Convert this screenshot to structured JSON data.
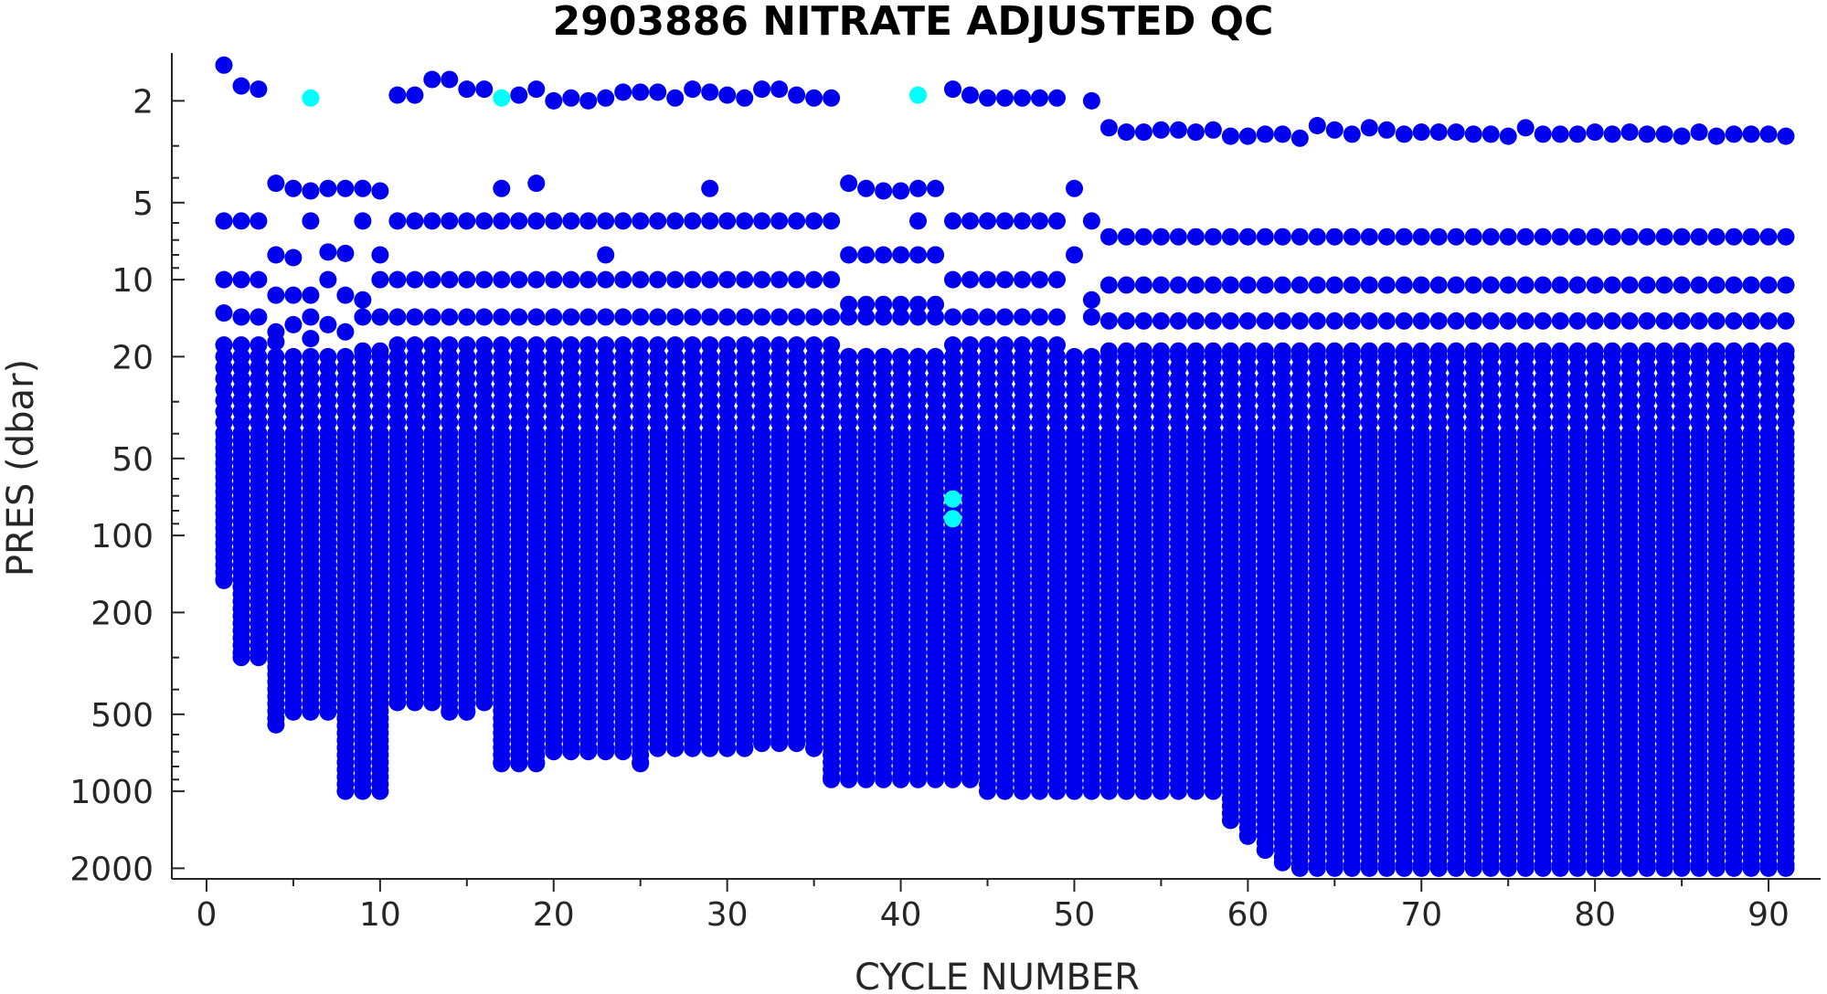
{
  "chart_data": {
    "type": "scatter",
    "title": "2903886  NITRATE ADJUSTED QC",
    "xlabel": "CYCLE NUMBER",
    "ylabel": "PRES (dbar)",
    "xlim": [
      -2,
      93
    ],
    "ylim": [
      1.3,
      2200
    ],
    "y_scale": "log",
    "y_reversed": true,
    "grid": false,
    "x_ticks": [
      0,
      10,
      20,
      30,
      40,
      50,
      60,
      70,
      80,
      90
    ],
    "y_ticks": [
      2,
      5,
      10,
      20,
      50,
      100,
      200,
      500,
      1000,
      2000
    ],
    "y_tick_labels": [
      "2",
      "5",
      "10",
      "20",
      "50",
      "100",
      "200",
      "500",
      "1000",
      "2000"
    ],
    "colors": {
      "qc_good": "#0000ee",
      "qc_flagged": "#00ffff"
    },
    "series": [
      {
        "color": "#0000ee",
        "surface_points": [
          [
            1,
            1.45
          ],
          [
            2,
            1.75
          ],
          [
            3,
            1.8
          ],
          [
            11,
            1.9
          ],
          [
            12,
            1.9
          ],
          [
            13,
            1.65
          ],
          [
            14,
            1.65
          ],
          [
            15,
            1.8
          ],
          [
            16,
            1.8
          ],
          [
            18,
            1.9
          ],
          [
            19,
            1.8
          ],
          [
            20,
            2.0
          ],
          [
            21,
            1.95
          ],
          [
            22,
            2.0
          ],
          [
            23,
            1.95
          ],
          [
            24,
            1.85
          ],
          [
            25,
            1.85
          ],
          [
            26,
            1.85
          ],
          [
            27,
            1.95
          ],
          [
            28,
            1.8
          ],
          [
            29,
            1.85
          ],
          [
            30,
            1.9
          ],
          [
            31,
            1.95
          ],
          [
            32,
            1.8
          ],
          [
            33,
            1.8
          ],
          [
            34,
            1.9
          ],
          [
            35,
            1.95
          ],
          [
            36,
            1.95
          ],
          [
            43,
            1.8
          ],
          [
            44,
            1.9
          ],
          [
            45,
            1.95
          ],
          [
            46,
            1.95
          ],
          [
            47,
            1.95
          ],
          [
            48,
            1.95
          ],
          [
            49,
            1.95
          ],
          [
            51,
            2.0
          ]
        ],
        "profile_points": [
          [
            1,
            5.9
          ],
          [
            1,
            10
          ],
          [
            1,
            13.5
          ],
          [
            1,
            18
          ],
          [
            2,
            5.9
          ],
          [
            2,
            10
          ],
          [
            2,
            14
          ],
          [
            2,
            18
          ],
          [
            3,
            5.9
          ],
          [
            3,
            10
          ],
          [
            3,
            14
          ],
          [
            3,
            18
          ],
          [
            4,
            4.2
          ],
          [
            4,
            8
          ],
          [
            4,
            11.5
          ],
          [
            4,
            16
          ],
          [
            4,
            17.5
          ],
          [
            5,
            4.4
          ],
          [
            5,
            8.2
          ],
          [
            5,
            11.5
          ],
          [
            5,
            15
          ],
          [
            6,
            4.5
          ],
          [
            6,
            5.9
          ],
          [
            6,
            11.5
          ],
          [
            6,
            14
          ],
          [
            6,
            17
          ],
          [
            7,
            4.4
          ],
          [
            7,
            7.8
          ],
          [
            7,
            10
          ],
          [
            7,
            15
          ],
          [
            8,
            4.4
          ],
          [
            8,
            7.9
          ],
          [
            8,
            11.5
          ],
          [
            8,
            16
          ],
          [
            9,
            4.4
          ],
          [
            9,
            5.9
          ],
          [
            9,
            12
          ],
          [
            9,
            14
          ],
          [
            9,
            19
          ],
          [
            10,
            4.5
          ],
          [
            10,
            8
          ],
          [
            10,
            10
          ],
          [
            10,
            14
          ],
          [
            10,
            19
          ],
          [
            17,
            4.4
          ],
          [
            19,
            4.2
          ],
          [
            23,
            8
          ],
          [
            29,
            4.4
          ],
          [
            37,
            4.2
          ],
          [
            38,
            4.4
          ],
          [
            39,
            4.5
          ],
          [
            40,
            4.5
          ],
          [
            41,
            4.4
          ],
          [
            41,
            5.9
          ],
          [
            42,
            4.4
          ],
          [
            42,
            8
          ],
          [
            50,
            4.4
          ],
          [
            50,
            8
          ],
          [
            51,
            5.9
          ],
          [
            51,
            14
          ],
          [
            51,
            12
          ],
          [
            52,
            2.55
          ],
          [
            53,
            2.65
          ],
          [
            54,
            2.65
          ],
          [
            55,
            2.6
          ],
          [
            56,
            2.6
          ],
          [
            57,
            2.65
          ],
          [
            58,
            2.6
          ],
          [
            59,
            2.75
          ],
          [
            60,
            2.75
          ],
          [
            61,
            2.7
          ],
          [
            62,
            2.7
          ],
          [
            63,
            2.8
          ],
          [
            64,
            2.5
          ],
          [
            65,
            2.6
          ],
          [
            66,
            2.7
          ],
          [
            67,
            2.55
          ],
          [
            68,
            2.6
          ],
          [
            69,
            2.7
          ],
          [
            70,
            2.65
          ],
          [
            71,
            2.65
          ],
          [
            72,
            2.65
          ],
          [
            73,
            2.7
          ],
          [
            74,
            2.7
          ],
          [
            75,
            2.75
          ],
          [
            76,
            2.55
          ],
          [
            77,
            2.7
          ],
          [
            78,
            2.7
          ],
          [
            79,
            2.7
          ],
          [
            80,
            2.65
          ],
          [
            81,
            2.7
          ],
          [
            82,
            2.65
          ],
          [
            83,
            2.7
          ],
          [
            84,
            2.7
          ],
          [
            85,
            2.75
          ],
          [
            86,
            2.65
          ],
          [
            87,
            2.75
          ],
          [
            88,
            2.7
          ],
          [
            89,
            2.7
          ],
          [
            90,
            2.7
          ],
          [
            91,
            2.75
          ]
        ],
        "levels_by_segment": [
          {
            "cycles": [
              1,
              3
            ],
            "min_pres": 20,
            "max_pres": [
              150,
              300,
              300
            ]
          },
          {
            "cycles": [
              4,
              7
            ],
            "min_pres": 20,
            "max_pres": [
              550,
              490,
              490,
              490
            ]
          },
          {
            "cycles": [
              8,
              10
            ],
            "min_pres": 20,
            "max_pres": 1000
          },
          {
            "cycles": [
              11,
              16
            ],
            "min_pres": 20,
            "max_pres": [
              450,
              450,
              450,
              490,
              490,
              450
            ]
          },
          {
            "cycles": [
              17,
              35
            ],
            "min_pres": 20,
            "max_pres": [
              780,
              780,
              780,
              700,
              700,
              700,
              700,
              700,
              780,
              680,
              680,
              680,
              680,
              680,
              680,
              650,
              650,
              650,
              680
            ]
          },
          {
            "cycles": [
              36,
              58
            ],
            "min_pres": 20,
            "max_pres": [
              900,
              900,
              900,
              900,
              900,
              900,
              900,
              900,
              900,
              1000,
              1000,
              1000,
              1000,
              1000,
              1000,
              1000,
              1000,
              1000,
              1000,
              1000,
              1000,
              1000,
              1000
            ]
          },
          {
            "cycles": [
              59,
              63
            ],
            "min_pres": 20,
            "max_pres": [
              1300,
              1500,
              1700,
              1900,
              2000
            ]
          },
          {
            "cycles": [
              64,
              91
            ],
            "min_pres": 20,
            "max_pres": 2000
          }
        ],
        "upper_regular_levels": [
          6.8,
          10.5,
          14.5,
          19
        ]
      },
      {
        "color": "#00ffff",
        "points": [
          [
            6,
            1.95
          ],
          [
            17,
            1.95
          ],
          [
            41,
            1.9
          ],
          [
            43,
            72
          ],
          [
            43,
            86
          ]
        ]
      }
    ]
  }
}
